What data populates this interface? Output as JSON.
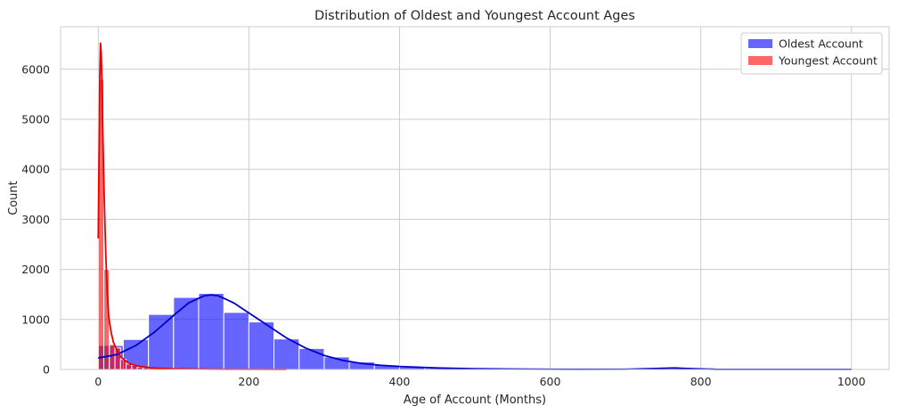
{
  "chart_data": {
    "type": "bar",
    "title": "Distribution of Oldest and Youngest Account Ages",
    "xlabel": "Age of Account (Months)",
    "ylabel": "Count",
    "xlim": [
      -50,
      1050
    ],
    "ylim": [
      0,
      6850
    ],
    "xticks": [
      0,
      200,
      400,
      600,
      800,
      1000
    ],
    "yticks": [
      0,
      1000,
      2000,
      3000,
      4000,
      5000,
      6000
    ],
    "grid": true,
    "legend_position": "top-right",
    "series": [
      {
        "name": "Oldest Account",
        "color": "#0000ff",
        "kde_color": "#0000cc",
        "bin_width": 33.3,
        "bins": [
          {
            "x0": 0,
            "x1": 33.3,
            "value": 480
          },
          {
            "x0": 33.3,
            "x1": 66.7,
            "value": 600
          },
          {
            "x0": 66.7,
            "x1": 100,
            "value": 1100
          },
          {
            "x0": 100,
            "x1": 133.3,
            "value": 1440
          },
          {
            "x0": 133.3,
            "x1": 166.7,
            "value": 1520
          },
          {
            "x0": 166.7,
            "x1": 200,
            "value": 1140
          },
          {
            "x0": 200,
            "x1": 233.3,
            "value": 950
          },
          {
            "x0": 233.3,
            "x1": 266.7,
            "value": 610
          },
          {
            "x0": 266.7,
            "x1": 300,
            "value": 420
          },
          {
            "x0": 300,
            "x1": 333.3,
            "value": 250
          },
          {
            "x0": 333.3,
            "x1": 366.7,
            "value": 150
          },
          {
            "x0": 366.7,
            "x1": 400,
            "value": 90
          },
          {
            "x0": 400,
            "x1": 433.3,
            "value": 50
          },
          {
            "x0": 433.3,
            "x1": 466.7,
            "value": 25
          },
          {
            "x0": 466.7,
            "x1": 500,
            "value": 12
          },
          {
            "x0": 500,
            "x1": 533.3,
            "value": 6
          },
          {
            "x0": 733.3,
            "x1": 766.7,
            "value": 3
          },
          {
            "x0": 966.7,
            "x1": 1000,
            "value": 2
          }
        ],
        "kde": [
          [
            0,
            230
          ],
          [
            25,
            300
          ],
          [
            50,
            480
          ],
          [
            75,
            750
          ],
          [
            100,
            1080
          ],
          [
            120,
            1330
          ],
          [
            140,
            1470
          ],
          [
            150,
            1490
          ],
          [
            160,
            1470
          ],
          [
            180,
            1330
          ],
          [
            200,
            1130
          ],
          [
            225,
            880
          ],
          [
            250,
            630
          ],
          [
            275,
            430
          ],
          [
            300,
            280
          ],
          [
            325,
            180
          ],
          [
            350,
            120
          ],
          [
            375,
            85
          ],
          [
            400,
            60
          ],
          [
            450,
            30
          ],
          [
            500,
            15
          ],
          [
            550,
            8
          ],
          [
            600,
            4
          ],
          [
            650,
            3
          ],
          [
            700,
            4
          ],
          [
            740,
            20
          ],
          [
            765,
            30
          ],
          [
            790,
            15
          ],
          [
            820,
            3
          ],
          [
            900,
            2
          ],
          [
            1000,
            2
          ]
        ]
      },
      {
        "name": "Youngest Account",
        "color": "#ff0000",
        "kde_color": "#e60000",
        "bin_width": 7.4,
        "bins": [
          {
            "x0": 0,
            "x1": 7.4,
            "value": 5800
          },
          {
            "x0": 7.4,
            "x1": 14.8,
            "value": 2000
          },
          {
            "x0": 14.8,
            "x1": 22.2,
            "value": 500
          },
          {
            "x0": 22.2,
            "x1": 29.6,
            "value": 430
          },
          {
            "x0": 29.6,
            "x1": 37,
            "value": 200
          },
          {
            "x0": 37,
            "x1": 44.4,
            "value": 110
          },
          {
            "x0": 44.4,
            "x1": 51.8,
            "value": 80
          },
          {
            "x0": 51.8,
            "x1": 59.2,
            "value": 50
          },
          {
            "x0": 59.2,
            "x1": 66.6,
            "value": 35
          },
          {
            "x0": 66.6,
            "x1": 74,
            "value": 25
          },
          {
            "x0": 74,
            "x1": 81.4,
            "value": 18
          },
          {
            "x0": 81.4,
            "x1": 88.8,
            "value": 12
          },
          {
            "x0": 88.8,
            "x1": 96.2,
            "value": 8
          },
          {
            "x0": 96.2,
            "x1": 103.6,
            "value": 6
          }
        ],
        "kde": [
          [
            0,
            2620
          ],
          [
            1,
            4200
          ],
          [
            2,
            5800
          ],
          [
            3,
            6520
          ],
          [
            4,
            6300
          ],
          [
            5,
            5700
          ],
          [
            6,
            4800
          ],
          [
            8,
            3400
          ],
          [
            10,
            2300
          ],
          [
            12,
            1500
          ],
          [
            14,
            1050
          ],
          [
            17,
            750
          ],
          [
            20,
            550
          ],
          [
            25,
            380
          ],
          [
            30,
            250
          ],
          [
            40,
            130
          ],
          [
            50,
            75
          ],
          [
            70,
            30
          ],
          [
            100,
            12
          ],
          [
            150,
            4
          ],
          [
            200,
            2
          ],
          [
            250,
            1
          ]
        ]
      }
    ]
  }
}
